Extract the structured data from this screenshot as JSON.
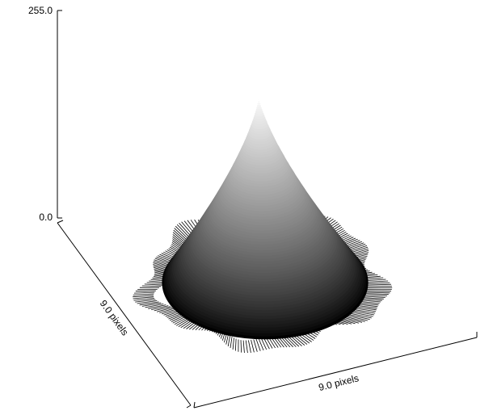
{
  "chart_data": {
    "type": "surface",
    "z_axis": {
      "min": 0.0,
      "max": 255.0,
      "min_label": "0.0",
      "max_label": "255.0"
    },
    "x_axis": {
      "label": "9.0 pixels",
      "extent_pixels": 9.0
    },
    "y_axis": {
      "label": "9.0 pixels",
      "extent_pixels": 9.0
    },
    "peak_value": 230,
    "shape": "radial-peak",
    "colormap": [
      "#000000",
      "#ffffff"
    ]
  }
}
